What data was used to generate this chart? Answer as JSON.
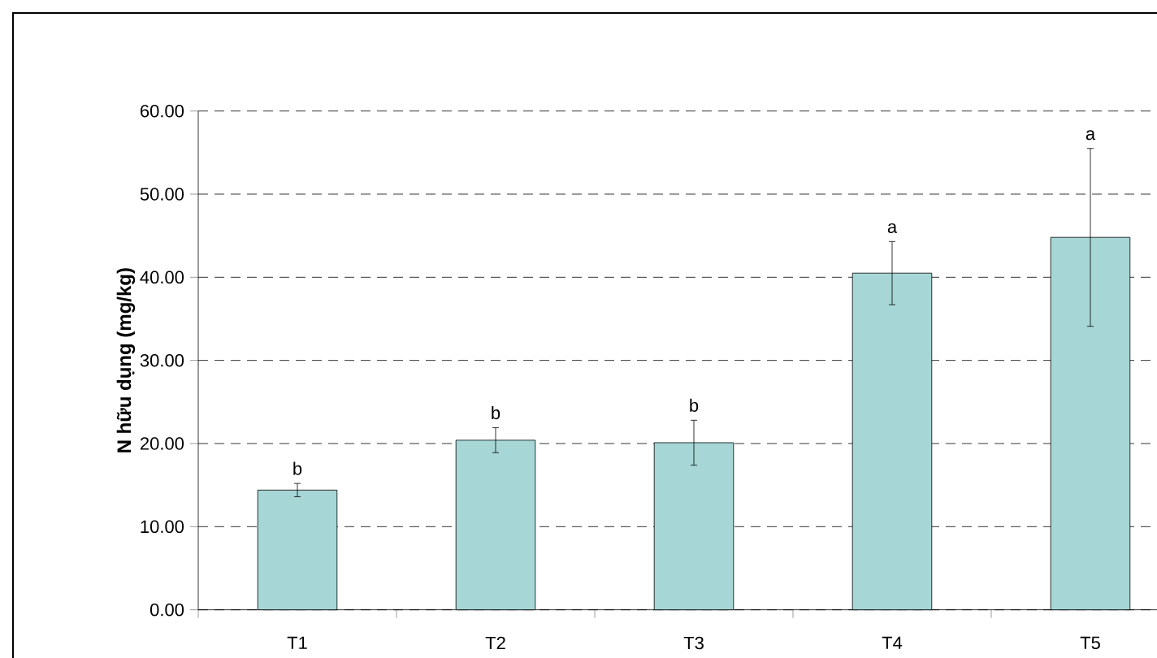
{
  "chart_data": {
    "type": "bar",
    "ylabel": "N hữu dụng (mg/kg)",
    "categories": [
      "T1",
      "T2",
      "T3",
      "T4",
      "T5"
    ],
    "values": [
      14.4,
      20.4,
      20.1,
      40.5,
      44.8
    ],
    "errors": [
      0.8,
      1.5,
      2.7,
      3.8,
      10.7
    ],
    "color": "#a6d6d6",
    "ylim": [
      0,
      60
    ],
    "yticks": [
      {
        "value": 0,
        "label": "0.00"
      },
      {
        "value": 10,
        "label": "10.00"
      },
      {
        "value": 20,
        "label": "20.00"
      },
      {
        "value": 30,
        "label": "30.00"
      },
      {
        "value": 40,
        "label": "40.00"
      },
      {
        "value": 50,
        "label": "50.00"
      },
      {
        "value": 60,
        "label": "60.00"
      }
    ],
    "grid": "y",
    "annotations": [
      "b",
      "b",
      "b",
      "a",
      "a"
    ]
  }
}
